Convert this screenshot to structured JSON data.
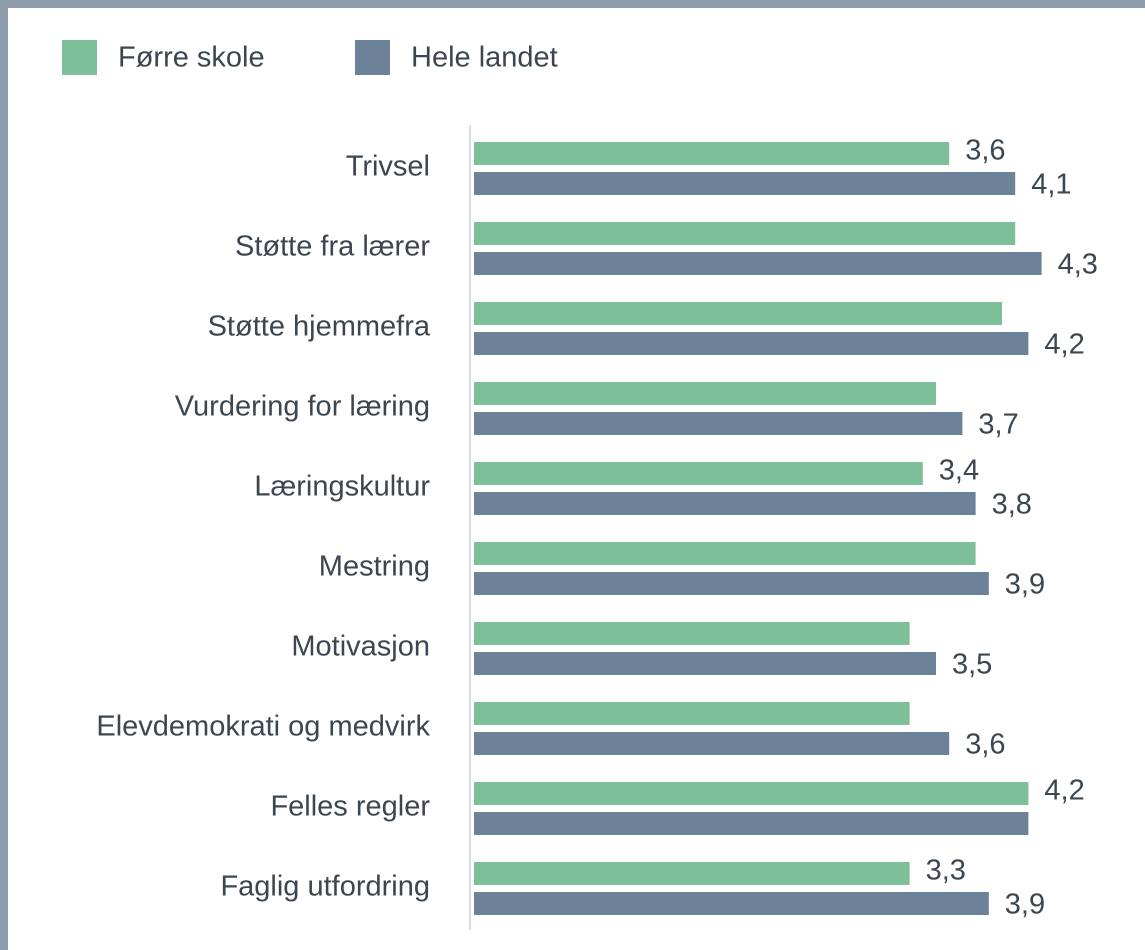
{
  "chart_data": {
    "type": "hbar",
    "categories": [
      "Trivsel",
      "Støtte fra lærer",
      "Støtte hjemmefra",
      "Vurdering for læring",
      "Læringskultur",
      "Mestring",
      "Motivasjon",
      "Elevdemokrati og medvirk",
      "Felles regler",
      "Faglig utfordring"
    ],
    "series": [
      {
        "name": "Førre skole",
        "color": "#7dbf98",
        "values": [
          3.6,
          4.1,
          4.0,
          3.5,
          3.4,
          3.8,
          3.3,
          3.3,
          4.2,
          3.3
        ],
        "value_labels": [
          "3,6",
          null,
          null,
          null,
          "3,4",
          null,
          null,
          null,
          "4,2",
          "3,3"
        ]
      },
      {
        "name": "Hele landet",
        "color": "#6b8299",
        "values": [
          4.1,
          4.3,
          4.2,
          3.7,
          3.8,
          3.9,
          3.5,
          3.6,
          4.2,
          3.9
        ],
        "value_labels": [
          "4,1",
          "4,3",
          "4,2",
          "3,7",
          "3,8",
          "3,9",
          "3,5",
          "3,6",
          null,
          "3,9"
        ]
      }
    ],
    "xlim": [
      0,
      4.5
    ]
  }
}
